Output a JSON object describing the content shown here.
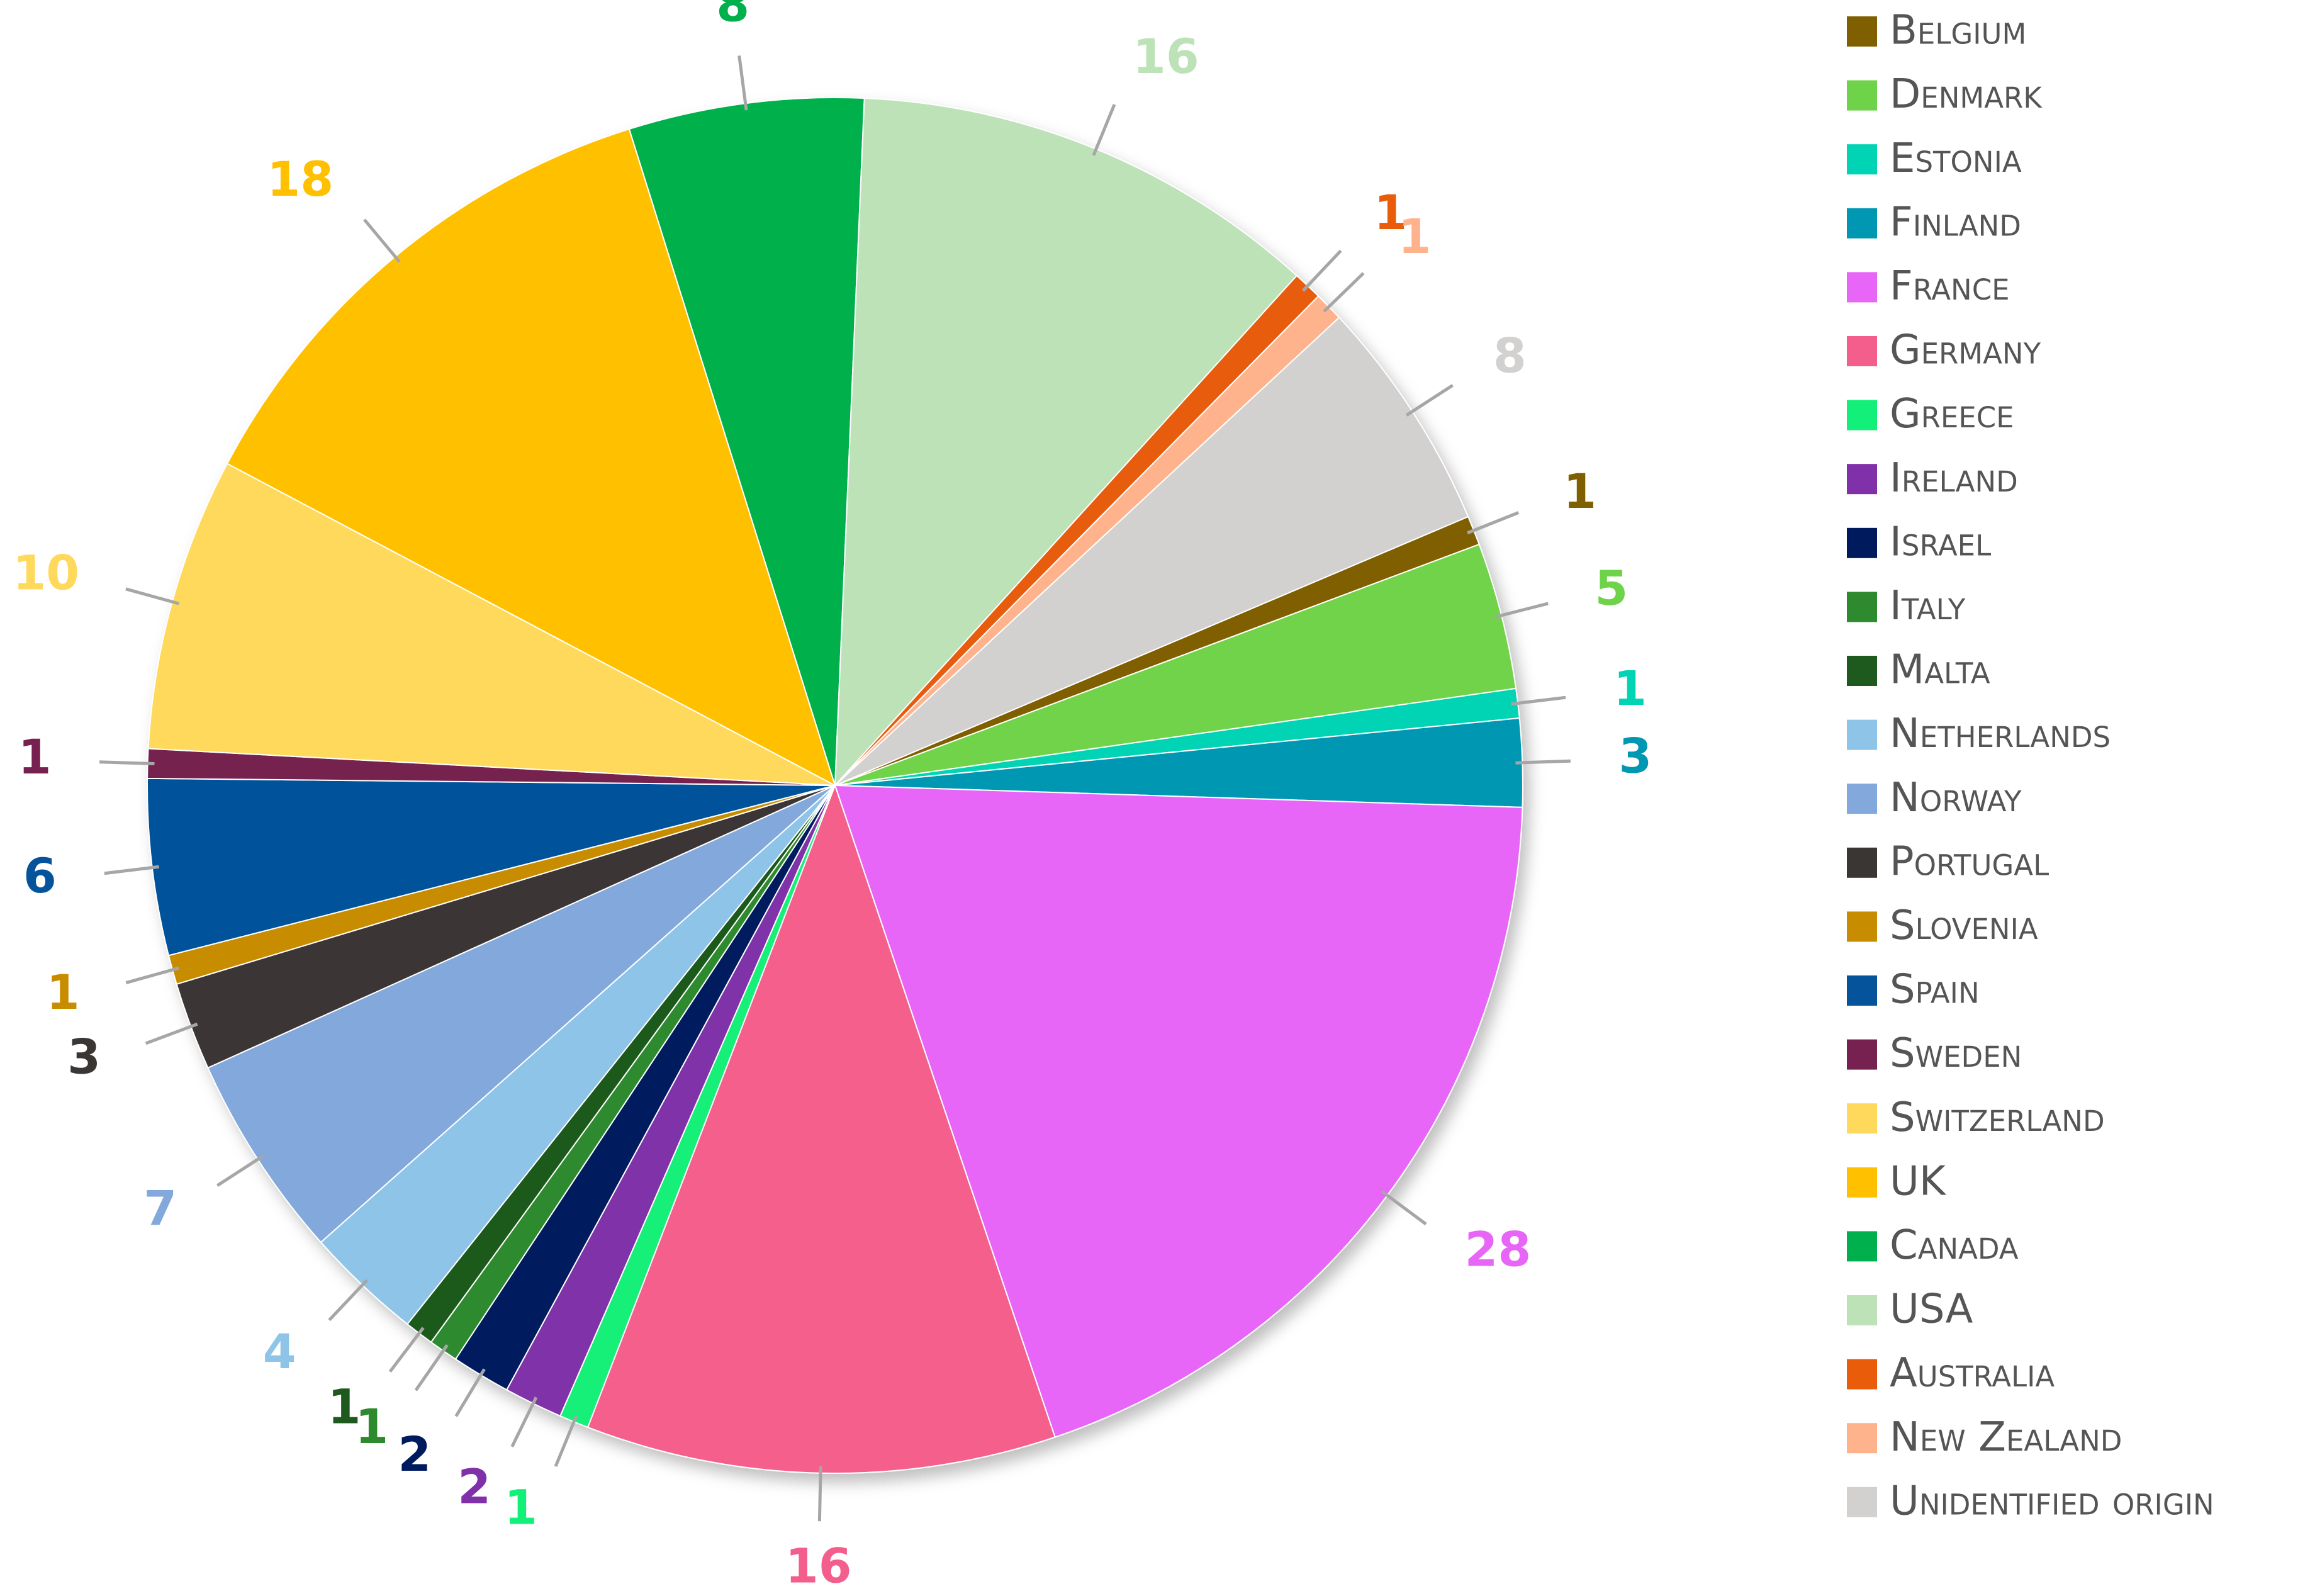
{
  "chart_data": {
    "type": "pie",
    "categories": [
      "Belgium",
      "Denmark",
      "Estonia",
      "Finland",
      "France",
      "Germany",
      "Greece",
      "Ireland",
      "Israel",
      "Italy",
      "Malta",
      "Netherlands",
      "Norway",
      "Portugal",
      "Slovenia",
      "Spain",
      "Sweden",
      "Switzerland",
      "UK",
      "Canada",
      "USA",
      "Australia",
      "New Zealand",
      "Unidentified origin"
    ],
    "values": [
      1,
      5,
      1,
      3,
      28,
      16,
      1,
      2,
      2,
      1,
      1,
      4,
      7,
      3,
      1,
      6,
      1,
      10,
      18,
      8,
      16,
      1,
      1,
      8
    ],
    "colors": [
      "#7f5f00",
      "#6fd34a",
      "#00d4b4",
      "#0097b2",
      "#e866f7",
      "#f45e8c",
      "#12f079",
      "#8030a8",
      "#001a5e",
      "#2e8a2e",
      "#1e5a1e",
      "#8ec4e8",
      "#82a8dc",
      "#3a3634",
      "#c88c00",
      "#05539a",
      "#76214f",
      "#ffd95b",
      "#ffc000",
      "#00b04c",
      "#bde2b8",
      "#e85c0a",
      "#ffb38c",
      "#d3d0d0"
    ],
    "legend": "right"
  }
}
